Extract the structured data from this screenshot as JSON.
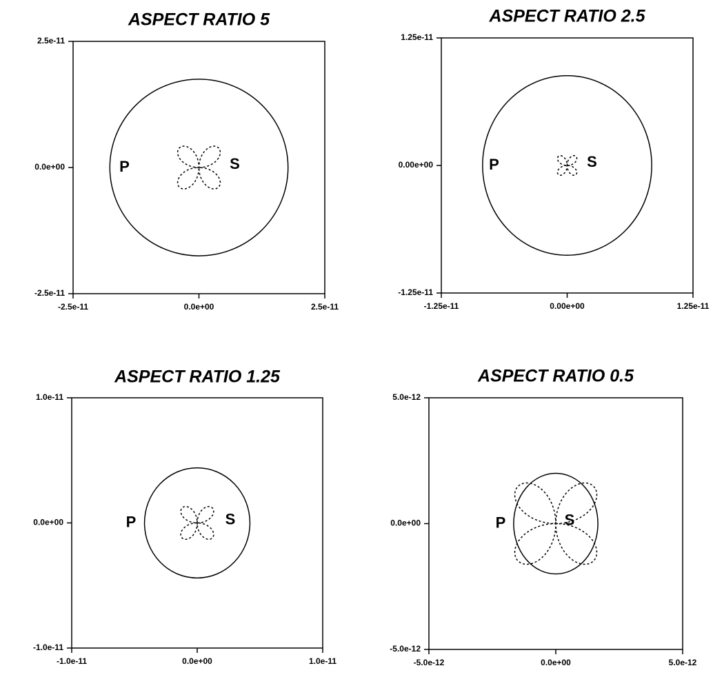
{
  "chart_data": [
    {
      "type": "pattern",
      "title": "ASPECT RATIO 5",
      "xlim": [
        -2.5e-11,
        2.5e-11
      ],
      "ylim": [
        -2.5e-11,
        2.5e-11
      ],
      "xticks": [
        {
          "value": -2.5e-11,
          "label": "-2.5e-11"
        },
        {
          "value": 0,
          "label": "0.0e+00"
        },
        {
          "value": 2.5e-11,
          "label": "2.5e-11"
        }
      ],
      "yticks": [
        {
          "value": -2.5e-11,
          "label": "-2.5e-11"
        },
        {
          "value": 0,
          "label": "0.0e+00"
        },
        {
          "value": 2.5e-11,
          "label": "2.5e-11"
        }
      ],
      "series": [
        {
          "name": "P",
          "color": "#000000",
          "style": "solid",
          "rx": 1.77e-11,
          "ry": 1.75e-11
        },
        {
          "name": "S",
          "color": "#000000",
          "style": "dotted",
          "amplitude": 5.5e-12
        }
      ]
    },
    {
      "type": "pattern",
      "title": "ASPECT RATIO 2.5",
      "xlim": [
        -1.25e-11,
        1.25e-11
      ],
      "ylim": [
        -1.25e-11,
        1.25e-11
      ],
      "xticks": [
        {
          "value": -1.25e-11,
          "label": "-1.25e-11"
        },
        {
          "value": 0,
          "label": "0.00e+00"
        },
        {
          "value": 1.25e-11,
          "label": "1.25e-11"
        }
      ],
      "yticks": [
        {
          "value": -1.25e-11,
          "label": "-1.25e-11"
        },
        {
          "value": 0,
          "label": "0.00e+00"
        },
        {
          "value": 1.25e-11,
          "label": "1.25e-11"
        }
      ],
      "series": [
        {
          "name": "P",
          "color": "#000000",
          "style": "solid",
          "rx": 8.4e-12,
          "ry": 8.8e-12
        },
        {
          "name": "S",
          "color": "#000000",
          "style": "dotted",
          "amplitude": 1.25e-12
        }
      ]
    },
    {
      "type": "pattern",
      "title": "ASPECT RATIO 1.25",
      "xlim": [
        -1e-11,
        1e-11
      ],
      "ylim": [
        -1e-11,
        1e-11
      ],
      "xticks": [
        {
          "value": -1e-11,
          "label": "-1.0e-11"
        },
        {
          "value": 0,
          "label": "0.0e+00"
        },
        {
          "value": 1e-11,
          "label": "1.0e-11"
        }
      ],
      "yticks": [
        {
          "value": -1e-11,
          "label": "-1.0e-11"
        },
        {
          "value": 0,
          "label": "0.0e+00"
        },
        {
          "value": 1e-11,
          "label": "1.0e-11"
        }
      ],
      "series": [
        {
          "name": "P",
          "color": "#000000",
          "style": "solid",
          "rx": 4.2e-12,
          "ry": 4.4e-12
        },
        {
          "name": "S",
          "color": "#000000",
          "style": "dotted",
          "amplitude": 1.7e-12
        }
      ]
    },
    {
      "type": "pattern",
      "title": "ASPECT RATIO 0.5",
      "xlim": [
        -5e-12,
        5e-12
      ],
      "ylim": [
        -5e-12,
        5e-12
      ],
      "xticks": [
        {
          "value": -5e-12,
          "label": "-5.0e-12"
        },
        {
          "value": 0,
          "label": "0.0e+00"
        },
        {
          "value": 5e-12,
          "label": "5.0e-12"
        }
      ],
      "yticks": [
        {
          "value": -5e-12,
          "label": "-5.0e-12"
        },
        {
          "value": 0,
          "label": "0.0e+00"
        },
        {
          "value": 5e-12,
          "label": "5.0e-12"
        }
      ],
      "series": [
        {
          "name": "P",
          "color": "#000000",
          "style": "solid",
          "rx": 1.66e-12,
          "ry": 2e-12
        },
        {
          "name": "S",
          "color": "#000000",
          "style": "dotted",
          "amplitude": 2.1e-12
        }
      ]
    }
  ]
}
